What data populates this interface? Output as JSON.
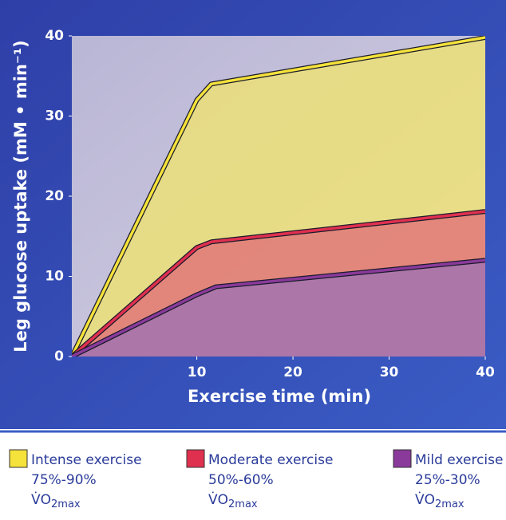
{
  "chart_data": {
    "type": "line",
    "xlabel": "Exercise time (min)",
    "ylabel": "Leg glucose uptake (mM • min⁻¹)",
    "xlim": [
      -3,
      40
    ],
    "ylim": [
      0,
      40
    ],
    "xticks": [
      10,
      20,
      30,
      40
    ],
    "yticks": [
      0,
      10,
      20,
      30,
      40
    ],
    "unit_main": "V̇O",
    "unit_sub": "2max",
    "series": [
      {
        "name": "Intense exercise",
        "intensity": "75%-90%",
        "color": "#f5e23a",
        "fill": "#f2e46a",
        "x": [
          -3,
          10,
          11.5,
          40
        ],
        "values": [
          0,
          32,
          34,
          39.8
        ]
      },
      {
        "name": "Moderate exercise",
        "intensity": "50%-60%",
        "color": "#e0304f",
        "fill": "#e06a78",
        "x": [
          -3,
          10,
          11.5,
          40
        ],
        "values": [
          0,
          13.6,
          14.3,
          18.1
        ]
      },
      {
        "name": "Mild exercise",
        "intensity": "25%-30%",
        "color": "#8a3a9a",
        "fill": "#9a70b8",
        "x": [
          -3,
          10,
          12,
          40
        ],
        "values": [
          0,
          7.7,
          8.7,
          12
        ]
      }
    ]
  }
}
